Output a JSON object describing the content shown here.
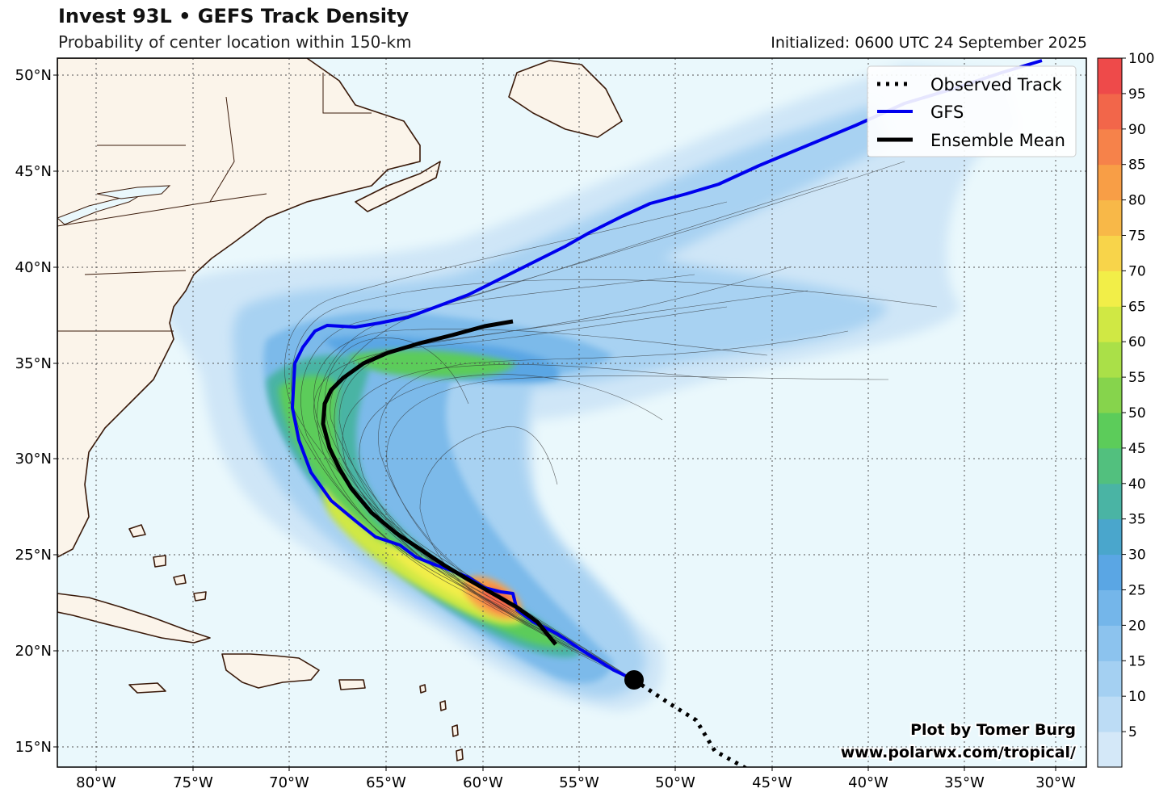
{
  "header": {
    "title": "Invest 93L • GEFS Track Density",
    "subtitle": "Probability of center location within 150-km",
    "initialized": "Initialized: 0600 UTC 24 September 2025"
  },
  "map": {
    "lon_labels": [
      "80°W",
      "75°W",
      "70°W",
      "65°W",
      "60°W",
      "55°W",
      "50°W",
      "45°W",
      "40°W",
      "35°W",
      "30°W"
    ],
    "lat_labels": [
      "50°N",
      "45°N",
      "40°N",
      "35°N",
      "30°N",
      "25°N",
      "20°N",
      "15°N"
    ],
    "legend": [
      {
        "label": "Observed Track",
        "style": "dotted",
        "color": "#000000"
      },
      {
        "label": "GFS",
        "style": "solid",
        "color": "#0000ee"
      },
      {
        "label": "Ensemble Mean",
        "style": "solid",
        "color": "#000000"
      }
    ],
    "credit_line1": "Plot by Tomer Burg",
    "credit_line2": "www.polarwx.com/tropical/",
    "colors": {
      "ocean": "#eaf8fc",
      "land": "#fbf4ea",
      "coast": "#3a1a0a",
      "gfs": "#0000ee",
      "mean": "#000000"
    }
  },
  "colorbar": {
    "labels": [
      "5",
      "10",
      "15",
      "20",
      "25",
      "30",
      "35",
      "40",
      "45",
      "50",
      "55",
      "60",
      "65",
      "70",
      "75",
      "80",
      "85",
      "90",
      "95",
      "100"
    ],
    "colors": [
      "#d4e8f8",
      "#bcdcf5",
      "#a4d0f2",
      "#8cc3ee",
      "#74b6ea",
      "#5aa6e4",
      "#4aa6cc",
      "#4ab4a4",
      "#52c07e",
      "#5ccc5a",
      "#86d44c",
      "#aae048",
      "#d0e844",
      "#f2ee48",
      "#f8d44a",
      "#f8b848",
      "#f89e46",
      "#f6824a",
      "#f2664a",
      "#ee4a4a"
    ]
  }
}
